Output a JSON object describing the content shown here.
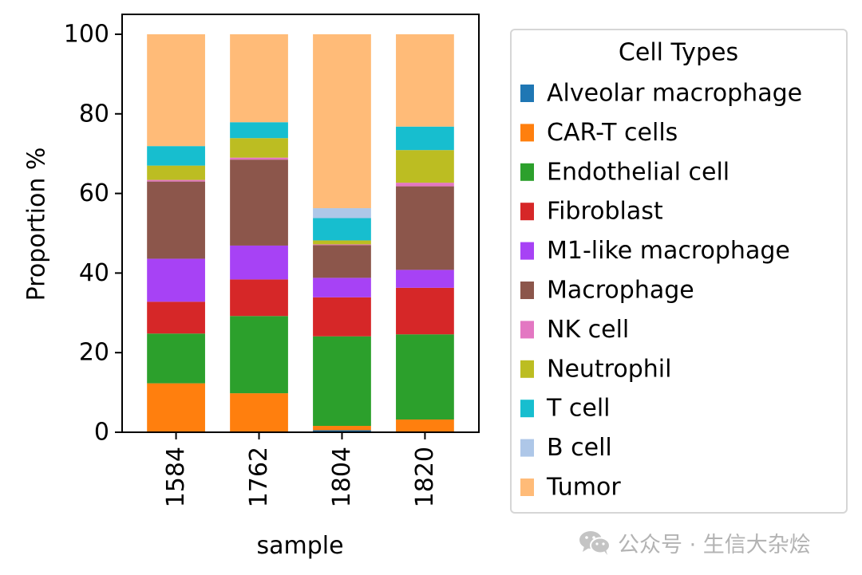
{
  "chart_data": {
    "type": "bar",
    "stacked": true,
    "categories": [
      "1584",
      "1762",
      "1804",
      "1820"
    ],
    "xlabel": "sample",
    "ylabel": "Proportion %",
    "ylim": [
      0,
      105
    ],
    "yticks": [
      0,
      20,
      40,
      60,
      80,
      100
    ],
    "grid": false,
    "legend": {
      "title": "Cell Types",
      "placement": "outside-right"
    },
    "series": [
      {
        "name": "Alveolar macrophage",
        "color": "#1f77b4",
        "values": [
          0,
          0,
          0.5,
          0
        ]
      },
      {
        "name": "CAR-T cells",
        "color": "#ff7f0e",
        "values": [
          12.3,
          9.8,
          1.1,
          3.2
        ]
      },
      {
        "name": "Endothelial cell",
        "color": "#2ca02c",
        "values": [
          12.5,
          19.4,
          22.5,
          21.4
        ]
      },
      {
        "name": "Fibroblast",
        "color": "#d62728",
        "values": [
          8.0,
          9.2,
          9.8,
          11.7
        ]
      },
      {
        "name": "M1-like macrophage",
        "color": "#a742f5",
        "values": [
          10.8,
          8.5,
          4.9,
          4.5
        ]
      },
      {
        "name": "Macrophage",
        "color": "#8c564b",
        "values": [
          19.4,
          21.6,
          8.2,
          21.0
        ]
      },
      {
        "name": "NK cell",
        "color": "#e377c2",
        "values": [
          0.4,
          0.5,
          0.2,
          0.9
        ]
      },
      {
        "name": "Neutrophil",
        "color": "#bcbd22",
        "values": [
          3.6,
          4.9,
          1.0,
          8.2
        ]
      },
      {
        "name": "T cell",
        "color": "#17becf",
        "values": [
          4.9,
          4.0,
          5.6,
          5.9
        ]
      },
      {
        "name": "B cell",
        "color": "#aec7e8",
        "values": [
          0,
          0,
          2.5,
          0
        ]
      },
      {
        "name": "Tumor",
        "color": "#ffbb78",
        "values": [
          28.1,
          22.1,
          43.7,
          23.2
        ]
      }
    ]
  },
  "watermark": {
    "text": "公众号 · 生信大杂烩",
    "icon": "wechat-icon"
  }
}
